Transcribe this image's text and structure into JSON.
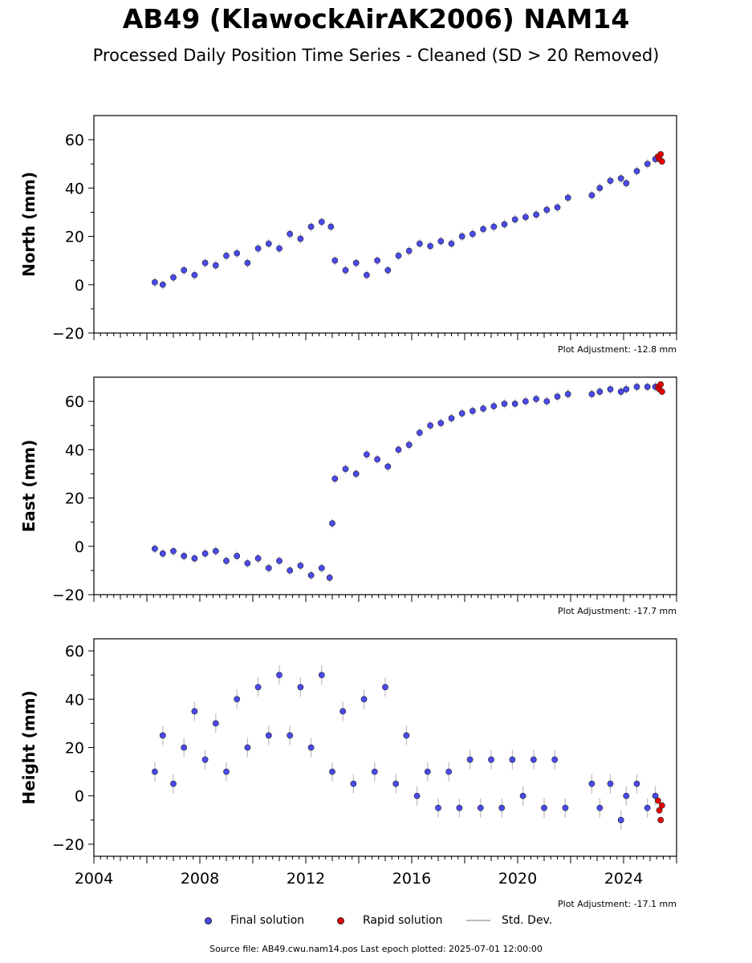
{
  "title": "AB49 (KlawockAirAK2006) NAM14",
  "subtitle": "Processed Daily Position Time Series - Cleaned (SD > 20 Removed)",
  "footer": "Source file: AB49.cwu.nam14.pos  Last epoch plotted: 2025-07-01 12:00:00",
  "legend": {
    "final": "Final solution",
    "rapid": "Rapid solution",
    "std": "Std. Dev."
  },
  "colors": {
    "final": "#4a4af0",
    "rapid": "#e80000",
    "std": "#bbbbbb",
    "marker_edge": "#222222"
  },
  "chart_data": [
    {
      "type": "scatter",
      "ylabel": "North (mm)",
      "adjustment": "Plot Adjustment: -12.8 mm",
      "xlim": [
        2004,
        2026
      ],
      "ylim": [
        -20,
        70
      ],
      "yticks": [
        -20,
        0,
        20,
        40,
        60
      ],
      "grid": false,
      "final_series": {
        "name": "Final solution",
        "x": [
          2006.3,
          2006.6,
          2007.0,
          2007.4,
          2007.8,
          2008.2,
          2008.6,
          2009.0,
          2009.4,
          2009.8,
          2010.2,
          2010.6,
          2011.0,
          2011.4,
          2011.8,
          2012.2,
          2012.6,
          2012.95,
          2013.1,
          2013.5,
          2013.9,
          2014.3,
          2014.7,
          2015.1,
          2015.5,
          2015.9,
          2016.3,
          2016.7,
          2017.1,
          2017.5,
          2017.9,
          2018.3,
          2018.7,
          2019.1,
          2019.5,
          2019.9,
          2020.3,
          2020.7,
          2021.1,
          2021.5,
          2021.9,
          2022.8,
          2023.1,
          2023.5,
          2023.9,
          2024.1,
          2024.5,
          2024.9,
          2025.2
        ],
        "y": [
          1,
          0,
          3,
          6,
          4,
          9,
          8,
          12,
          13,
          9,
          15,
          17,
          15,
          21,
          19,
          24,
          26,
          24,
          10,
          6,
          9,
          4,
          10,
          6,
          12,
          14,
          17,
          16,
          18,
          17,
          20,
          21,
          23,
          24,
          25,
          27,
          28,
          29,
          31,
          32,
          36,
          37,
          40,
          43,
          44,
          42,
          47,
          50,
          52
        ]
      },
      "rapid_series": {
        "name": "Rapid solution",
        "x": [
          2025.3,
          2025.35,
          2025.4,
          2025.45
        ],
        "y": [
          53,
          52,
          54,
          51
        ]
      },
      "std_dev_mm": 2.0
    },
    {
      "type": "scatter",
      "ylabel": "East (mm)",
      "adjustment": "Plot Adjustment: -17.7 mm",
      "xlim": [
        2004,
        2026
      ],
      "ylim": [
        -20,
        70
      ],
      "yticks": [
        -20,
        0,
        20,
        40,
        60
      ],
      "grid": false,
      "final_series": {
        "name": "Final solution",
        "x": [
          2006.3,
          2006.6,
          2007.0,
          2007.4,
          2007.8,
          2008.2,
          2008.6,
          2009.0,
          2009.4,
          2009.8,
          2010.2,
          2010.6,
          2011.0,
          2011.4,
          2011.8,
          2012.2,
          2012.6,
          2012.9,
          2013.0,
          2013.1,
          2013.5,
          2013.9,
          2014.3,
          2014.7,
          2015.1,
          2015.5,
          2015.9,
          2016.3,
          2016.7,
          2017.1,
          2017.5,
          2017.9,
          2018.3,
          2018.7,
          2019.1,
          2019.5,
          2019.9,
          2020.3,
          2020.7,
          2021.1,
          2021.5,
          2021.9,
          2022.8,
          2023.1,
          2023.5,
          2023.9,
          2024.1,
          2024.5,
          2024.9,
          2025.2
        ],
        "y": [
          -1,
          -3,
          -2,
          -4,
          -5,
          -3,
          -2,
          -6,
          -4,
          -7,
          -5,
          -9,
          -6,
          -10,
          -8,
          -12,
          -9,
          -13,
          9.5,
          28,
          32,
          30,
          38,
          36,
          33,
          40,
          42,
          47,
          50,
          51,
          53,
          55,
          56,
          57,
          58,
          59,
          59,
          60,
          61,
          60,
          62,
          63,
          63,
          64,
          65,
          64,
          65,
          66,
          66,
          66
        ]
      },
      "rapid_series": {
        "name": "Rapid solution",
        "x": [
          2025.3,
          2025.35,
          2025.4,
          2025.45
        ],
        "y": [
          66,
          65,
          67,
          64
        ]
      },
      "std_dev_mm": 2.0
    },
    {
      "type": "scatter",
      "ylabel": "Height (mm)",
      "adjustment": "Plot Adjustment: -17.1 mm",
      "xlim": [
        2004,
        2026
      ],
      "ylim": [
        -25,
        65
      ],
      "yticks": [
        -20,
        0,
        20,
        40,
        60
      ],
      "grid": false,
      "xticks": [
        "2004",
        "2008",
        "2012",
        "2016",
        "2020",
        "2024"
      ],
      "final_series": {
        "name": "Final solution",
        "x": [
          2006.3,
          2006.6,
          2007.0,
          2007.4,
          2007.8,
          2008.2,
          2008.6,
          2009.0,
          2009.4,
          2009.8,
          2010.2,
          2010.6,
          2011.0,
          2011.4,
          2011.8,
          2012.2,
          2012.6,
          2013.0,
          2013.4,
          2013.8,
          2014.2,
          2014.6,
          2015.0,
          2015.4,
          2015.8,
          2016.2,
          2016.6,
          2017.0,
          2017.4,
          2017.8,
          2018.2,
          2018.6,
          2019.0,
          2019.4,
          2019.8,
          2020.2,
          2020.6,
          2021.0,
          2021.4,
          2021.8,
          2022.8,
          2023.1,
          2023.5,
          2023.9,
          2024.1,
          2024.5,
          2024.9,
          2025.2
        ],
        "y": [
          10,
          25,
          5,
          20,
          35,
          15,
          30,
          10,
          40,
          20,
          45,
          25,
          50,
          25,
          45,
          20,
          50,
          10,
          35,
          5,
          40,
          10,
          45,
          5,
          25,
          0,
          10,
          -5,
          10,
          -5,
          15,
          -5,
          15,
          -5,
          15,
          0,
          15,
          -5,
          15,
          -5,
          5,
          -5,
          5,
          -10,
          0,
          5,
          -5,
          0
        ]
      },
      "rapid_series": {
        "name": "Rapid solution",
        "x": [
          2025.3,
          2025.35,
          2025.4,
          2025.45
        ],
        "y": [
          -2,
          -6,
          -10,
          -4
        ]
      },
      "std_dev_mm": 4.0
    }
  ]
}
